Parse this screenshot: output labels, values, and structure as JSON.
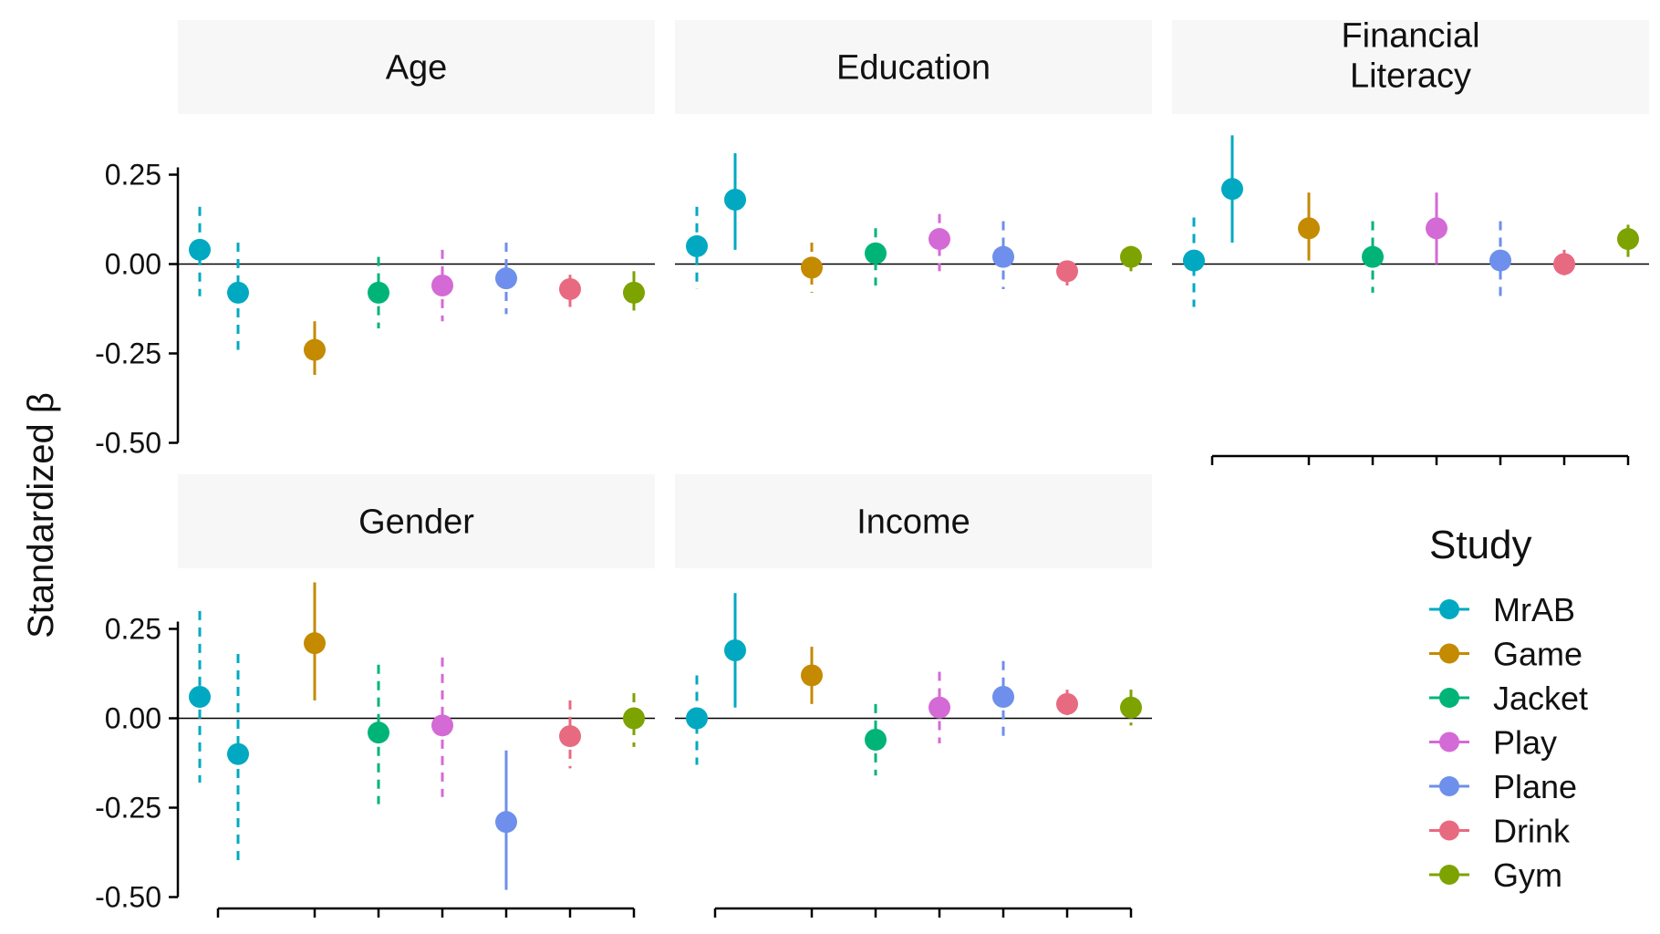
{
  "chart_data": {
    "type": "scatter",
    "ylabel": "Standardized β",
    "ylim": [
      -0.5,
      0.25
    ],
    "ytick_labels": [
      "0.25",
      "0.00",
      "-0.25",
      "-0.50"
    ],
    "yticks": [
      0.25,
      0.0,
      -0.25,
      -0.5
    ],
    "x_categories": [
      "MrAB",
      "Game",
      "Jacket",
      "Play",
      "Plane",
      "Drink",
      "Gym"
    ],
    "legend": {
      "title": "Study",
      "placement": "right",
      "entries": [
        "MrAB",
        "Game",
        "Jacket",
        "Play",
        "Plane",
        "Drink",
        "Gym"
      ]
    },
    "colors": {
      "MrAB": "#00A9C1",
      "Game": "#C48A00",
      "Jacket": "#00B478",
      "Play": "#D46AD6",
      "Plane": "#6E8FEB",
      "Drink": "#E86A80",
      "Gym": "#7CA300"
    },
    "panels": [
      {
        "title": "Age",
        "points": [
          {
            "study": "MrAB",
            "est": 0.04,
            "lo": -0.09,
            "hi": 0.16,
            "line": "dashed"
          },
          {
            "study": "MrAB",
            "est": -0.08,
            "lo": -0.24,
            "hi": 0.06,
            "line": "dashed"
          },
          {
            "study": "Game",
            "est": -0.24,
            "lo": -0.31,
            "hi": -0.16,
            "line": "solid"
          },
          {
            "study": "Jacket",
            "est": -0.08,
            "lo": -0.18,
            "hi": 0.02,
            "line": "dashed"
          },
          {
            "study": "Play",
            "est": -0.06,
            "lo": -0.16,
            "hi": 0.04,
            "line": "dashed"
          },
          {
            "study": "Plane",
            "est": -0.04,
            "lo": -0.14,
            "hi": 0.06,
            "line": "dashed"
          },
          {
            "study": "Drink",
            "est": -0.07,
            "lo": -0.12,
            "hi": -0.03,
            "line": "solid"
          },
          {
            "study": "Gym",
            "est": -0.08,
            "lo": -0.13,
            "hi": -0.02,
            "line": "solid"
          }
        ]
      },
      {
        "title": "Education",
        "points": [
          {
            "study": "MrAB",
            "est": 0.05,
            "lo": -0.07,
            "hi": 0.16,
            "line": "dashed"
          },
          {
            "study": "MrAB",
            "est": 0.18,
            "lo": 0.04,
            "hi": 0.31,
            "line": "solid"
          },
          {
            "study": "Game",
            "est": -0.01,
            "lo": -0.08,
            "hi": 0.06,
            "line": "dashed"
          },
          {
            "study": "Jacket",
            "est": 0.03,
            "lo": -0.06,
            "hi": 0.1,
            "line": "dashed"
          },
          {
            "study": "Play",
            "est": 0.07,
            "lo": -0.02,
            "hi": 0.14,
            "line": "dashed"
          },
          {
            "study": "Plane",
            "est": 0.02,
            "lo": -0.07,
            "hi": 0.12,
            "line": "dashed"
          },
          {
            "study": "Drink",
            "est": -0.02,
            "lo": -0.06,
            "hi": 0.0,
            "line": "dashed"
          },
          {
            "study": "Gym",
            "est": 0.02,
            "lo": -0.02,
            "hi": 0.05,
            "line": "dashed"
          }
        ]
      },
      {
        "title": "Financial Literacy",
        "points": [
          {
            "study": "MrAB",
            "est": 0.01,
            "lo": -0.12,
            "hi": 0.13,
            "line": "dashed"
          },
          {
            "study": "MrAB",
            "est": 0.21,
            "lo": 0.06,
            "hi": 0.36,
            "line": "solid"
          },
          {
            "study": "Game",
            "est": 0.1,
            "lo": 0.01,
            "hi": 0.2,
            "line": "solid"
          },
          {
            "study": "Jacket",
            "est": 0.02,
            "lo": -0.08,
            "hi": 0.12,
            "line": "dashed"
          },
          {
            "study": "Play",
            "est": 0.1,
            "lo": 0.0,
            "hi": 0.2,
            "line": "solid"
          },
          {
            "study": "Plane",
            "est": 0.01,
            "lo": -0.09,
            "hi": 0.12,
            "line": "dashed"
          },
          {
            "study": "Drink",
            "est": 0.0,
            "lo": -0.04,
            "hi": 0.04,
            "line": "dashed"
          },
          {
            "study": "Gym",
            "est": 0.07,
            "lo": 0.02,
            "hi": 0.11,
            "line": "solid"
          }
        ]
      },
      {
        "title": "Gender",
        "points": [
          {
            "study": "MrAB",
            "est": 0.06,
            "lo": -0.18,
            "hi": 0.3,
            "line": "dashed"
          },
          {
            "study": "MrAB",
            "est": -0.1,
            "lo": -0.4,
            "hi": 0.18,
            "line": "dashed"
          },
          {
            "study": "Game",
            "est": 0.21,
            "lo": 0.05,
            "hi": 0.38,
            "line": "solid"
          },
          {
            "study": "Jacket",
            "est": -0.04,
            "lo": -0.24,
            "hi": 0.15,
            "line": "dashed"
          },
          {
            "study": "Play",
            "est": -0.02,
            "lo": -0.22,
            "hi": 0.17,
            "line": "dashed"
          },
          {
            "study": "Plane",
            "est": -0.29,
            "lo": -0.48,
            "hi": -0.09,
            "line": "solid"
          },
          {
            "study": "Drink",
            "est": -0.05,
            "lo": -0.14,
            "hi": 0.05,
            "line": "dashed"
          },
          {
            "study": "Gym",
            "est": 0.0,
            "lo": -0.08,
            "hi": 0.07,
            "line": "dashed"
          }
        ]
      },
      {
        "title": "Income",
        "points": [
          {
            "study": "MrAB",
            "est": 0.0,
            "lo": -0.13,
            "hi": 0.12,
            "line": "dashed"
          },
          {
            "study": "MrAB",
            "est": 0.19,
            "lo": 0.03,
            "hi": 0.35,
            "line": "solid"
          },
          {
            "study": "Game",
            "est": 0.12,
            "lo": 0.04,
            "hi": 0.2,
            "line": "solid"
          },
          {
            "study": "Jacket",
            "est": -0.06,
            "lo": -0.16,
            "hi": 0.04,
            "line": "dashed"
          },
          {
            "study": "Play",
            "est": 0.03,
            "lo": -0.07,
            "hi": 0.13,
            "line": "dashed"
          },
          {
            "study": "Plane",
            "est": 0.06,
            "lo": -0.05,
            "hi": 0.16,
            "line": "dashed"
          },
          {
            "study": "Drink",
            "est": 0.04,
            "lo": -0.01,
            "hi": 0.08,
            "line": "dashed"
          },
          {
            "study": "Gym",
            "est": 0.03,
            "lo": -0.02,
            "hi": 0.08,
            "line": "dashed"
          }
        ]
      }
    ]
  }
}
